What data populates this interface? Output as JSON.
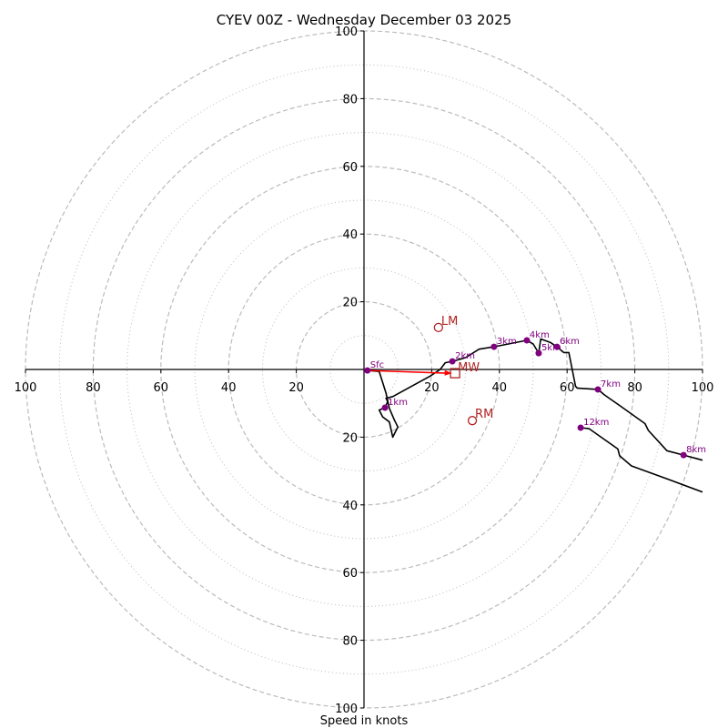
{
  "chart_data": {
    "type": "line",
    "subtype": "hodograph",
    "title": "CYEV 00Z - Wednesday December 03 2025",
    "xlabel": "Speed in knots",
    "ylabel": "",
    "units": "knots",
    "range": [
      -100,
      100
    ],
    "x_tick_labels": [
      "100",
      "80",
      "60",
      "40",
      "20",
      "20",
      "40",
      "60",
      "80",
      "100"
    ],
    "x_tick_values": [
      -100,
      -80,
      -60,
      -40,
      -20,
      20,
      40,
      60,
      80,
      100
    ],
    "y_tick_labels": [
      "100",
      "80",
      "60",
      "40",
      "20",
      "20",
      "40",
      "60",
      "80",
      "100"
    ],
    "y_tick_values": [
      100,
      80,
      60,
      40,
      20,
      -20,
      -40,
      -60,
      -80,
      -100
    ],
    "rings_dashed": [
      20,
      40,
      60,
      80,
      100
    ],
    "rings_dotted": [
      10,
      30,
      50,
      70,
      90
    ],
    "grid": true,
    "colors": {
      "trace": "#000000",
      "height_marker": "#800080",
      "motion": "#b22222",
      "shear_arrow": "#ff0000",
      "grid": "#bbbbbb"
    },
    "trace": [
      [
        1.0,
        -0.3
      ],
      [
        4.5,
        -0.6
      ],
      [
        6.5,
        -7.0
      ],
      [
        7.5,
        -11.5
      ],
      [
        9.0,
        -15.0
      ],
      [
        10.0,
        -17.0
      ],
      [
        9.5,
        -18.0
      ],
      [
        8.5,
        -20.0
      ],
      [
        7.5,
        -15.5
      ],
      [
        5.5,
        -14.0
      ],
      [
        4.5,
        -12.0
      ],
      [
        6.2,
        -11.3
      ],
      [
        7.0,
        -9.5
      ],
      [
        6.5,
        -8.5
      ],
      [
        8.5,
        -8.0
      ],
      [
        14.0,
        -5.0
      ],
      [
        19.5,
        -2.0
      ],
      [
        22.5,
        0.0
      ],
      [
        24.0,
        2.0
      ],
      [
        26.1,
        2.4
      ],
      [
        30.0,
        3.5
      ],
      [
        34.0,
        6.0
      ],
      [
        38.4,
        6.7
      ],
      [
        44.0,
        7.8
      ],
      [
        48.1,
        8.6
      ],
      [
        50.0,
        7.5
      ],
      [
        51.6,
        4.8
      ],
      [
        52.2,
        9.0
      ],
      [
        55.0,
        8.0
      ],
      [
        57.0,
        6.7
      ],
      [
        59.0,
        5.0
      ],
      [
        60.5,
        5.0
      ],
      [
        62.5,
        -5.0
      ],
      [
        63.0,
        -5.5
      ],
      [
        69.1,
        -5.9
      ],
      [
        71.0,
        -7.5
      ],
      [
        76.0,
        -11.0
      ],
      [
        83.0,
        -16.0
      ],
      [
        84.0,
        -18.0
      ],
      [
        89.5,
        -24.0
      ],
      [
        94.4,
        -25.3
      ],
      [
        100.0,
        -26.8
      ]
    ],
    "trace_upper": [
      [
        64.0,
        -17.2
      ],
      [
        66.5,
        -17.5
      ],
      [
        75.0,
        -23.5
      ],
      [
        75.5,
        -25.5
      ],
      [
        79.0,
        -28.5
      ],
      [
        90.0,
        -32.5
      ],
      [
        100.0,
        -36.2
      ]
    ],
    "height_markers": [
      {
        "label": "Sfc",
        "u": 1.0,
        "v": -0.3
      },
      {
        "label": "1km",
        "u": 6.2,
        "v": -11.3
      },
      {
        "label": "2km",
        "u": 26.1,
        "v": 2.4
      },
      {
        "label": "3km",
        "u": 38.4,
        "v": 6.7
      },
      {
        "label": "4km",
        "u": 48.1,
        "v": 8.6
      },
      {
        "label": "5km",
        "u": 51.6,
        "v": 4.8
      },
      {
        "label": "6km",
        "u": 57.0,
        "v": 6.7
      },
      {
        "label": "7km",
        "u": 69.1,
        "v": -5.9
      },
      {
        "label": "8km",
        "u": 94.4,
        "v": -25.3
      },
      {
        "label": "12km",
        "u": 64.0,
        "v": -17.2
      }
    ],
    "storm_motion": [
      {
        "label": "LM",
        "u": 22.0,
        "v": 12.4,
        "marker": "circle"
      },
      {
        "label": "RM",
        "u": 32.0,
        "v": -15.1,
        "marker": "circle"
      },
      {
        "label": "MW",
        "u": 26.9,
        "v": -1.1,
        "marker": "square"
      }
    ],
    "shear_arrow": {
      "from": [
        1.0,
        -0.3
      ],
      "to": [
        26.0,
        -1.1
      ]
    }
  }
}
